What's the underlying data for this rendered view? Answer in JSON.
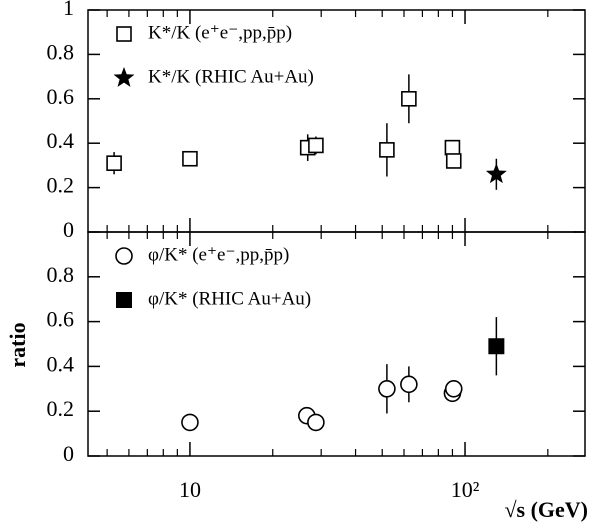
{
  "chart_data": {
    "type": "scatter",
    "xlabel": "√s (GeV)",
    "ylabel": "ratio",
    "xscale": "log",
    "xlim": [
      4.26,
      273
    ],
    "xticks": [
      10,
      {
        "value": 100,
        "label": "10²"
      }
    ],
    "xminorticks": [
      5,
      6,
      7,
      8,
      9,
      20,
      30,
      40,
      50,
      60,
      70,
      80,
      90,
      200
    ],
    "legend": "upper left",
    "panels": [
      {
        "ylim": [
          0,
          1
        ],
        "yticks": [
          0,
          0.2,
          0.4,
          0.6,
          0.8,
          1
        ],
        "series": [
          {
            "name": "K*/K (e⁺e⁻,pp,p̄p)",
            "marker": "open-square",
            "color": "#000000",
            "x": [
              5.3,
              10,
              26.8,
              28.7,
              52,
              62.5,
              90,
              91
            ],
            "values": [
              0.31,
              0.33,
              0.38,
              0.39,
              0.37,
              0.6,
              0.38,
              0.32
            ],
            "errors": [
              0.05,
              null,
              0.06,
              0.04,
              0.12,
              0.11,
              null,
              null
            ]
          },
          {
            "name": "K*/K (RHIC Au+Au)",
            "marker": "star",
            "color": "#000000",
            "x": [
              130
            ],
            "values": [
              0.26
            ],
            "errors": [
              0.07
            ]
          }
        ]
      },
      {
        "ylim": [
          0,
          1
        ],
        "yticks": [
          0,
          0.2,
          0.4,
          0.6,
          0.8
        ],
        "series": [
          {
            "name": "φ/K* (e⁺e⁻,pp,p̄p)",
            "marker": "open-circle",
            "color": "#000000",
            "x": [
              10,
              26.6,
              28.7,
              52,
              62.5,
              90,
              91
            ],
            "values": [
              0.15,
              0.18,
              0.15,
              0.3,
              0.32,
              0.28,
              0.3
            ],
            "errors": [
              null,
              null,
              null,
              0.11,
              0.08,
              null,
              null
            ]
          },
          {
            "name": "φ/K* (RHIC Au+Au)",
            "marker": "filled-square",
            "color": "#000000",
            "x": [
              130
            ],
            "values": [
              0.49
            ],
            "errors": [
              0.13
            ]
          }
        ]
      }
    ]
  }
}
